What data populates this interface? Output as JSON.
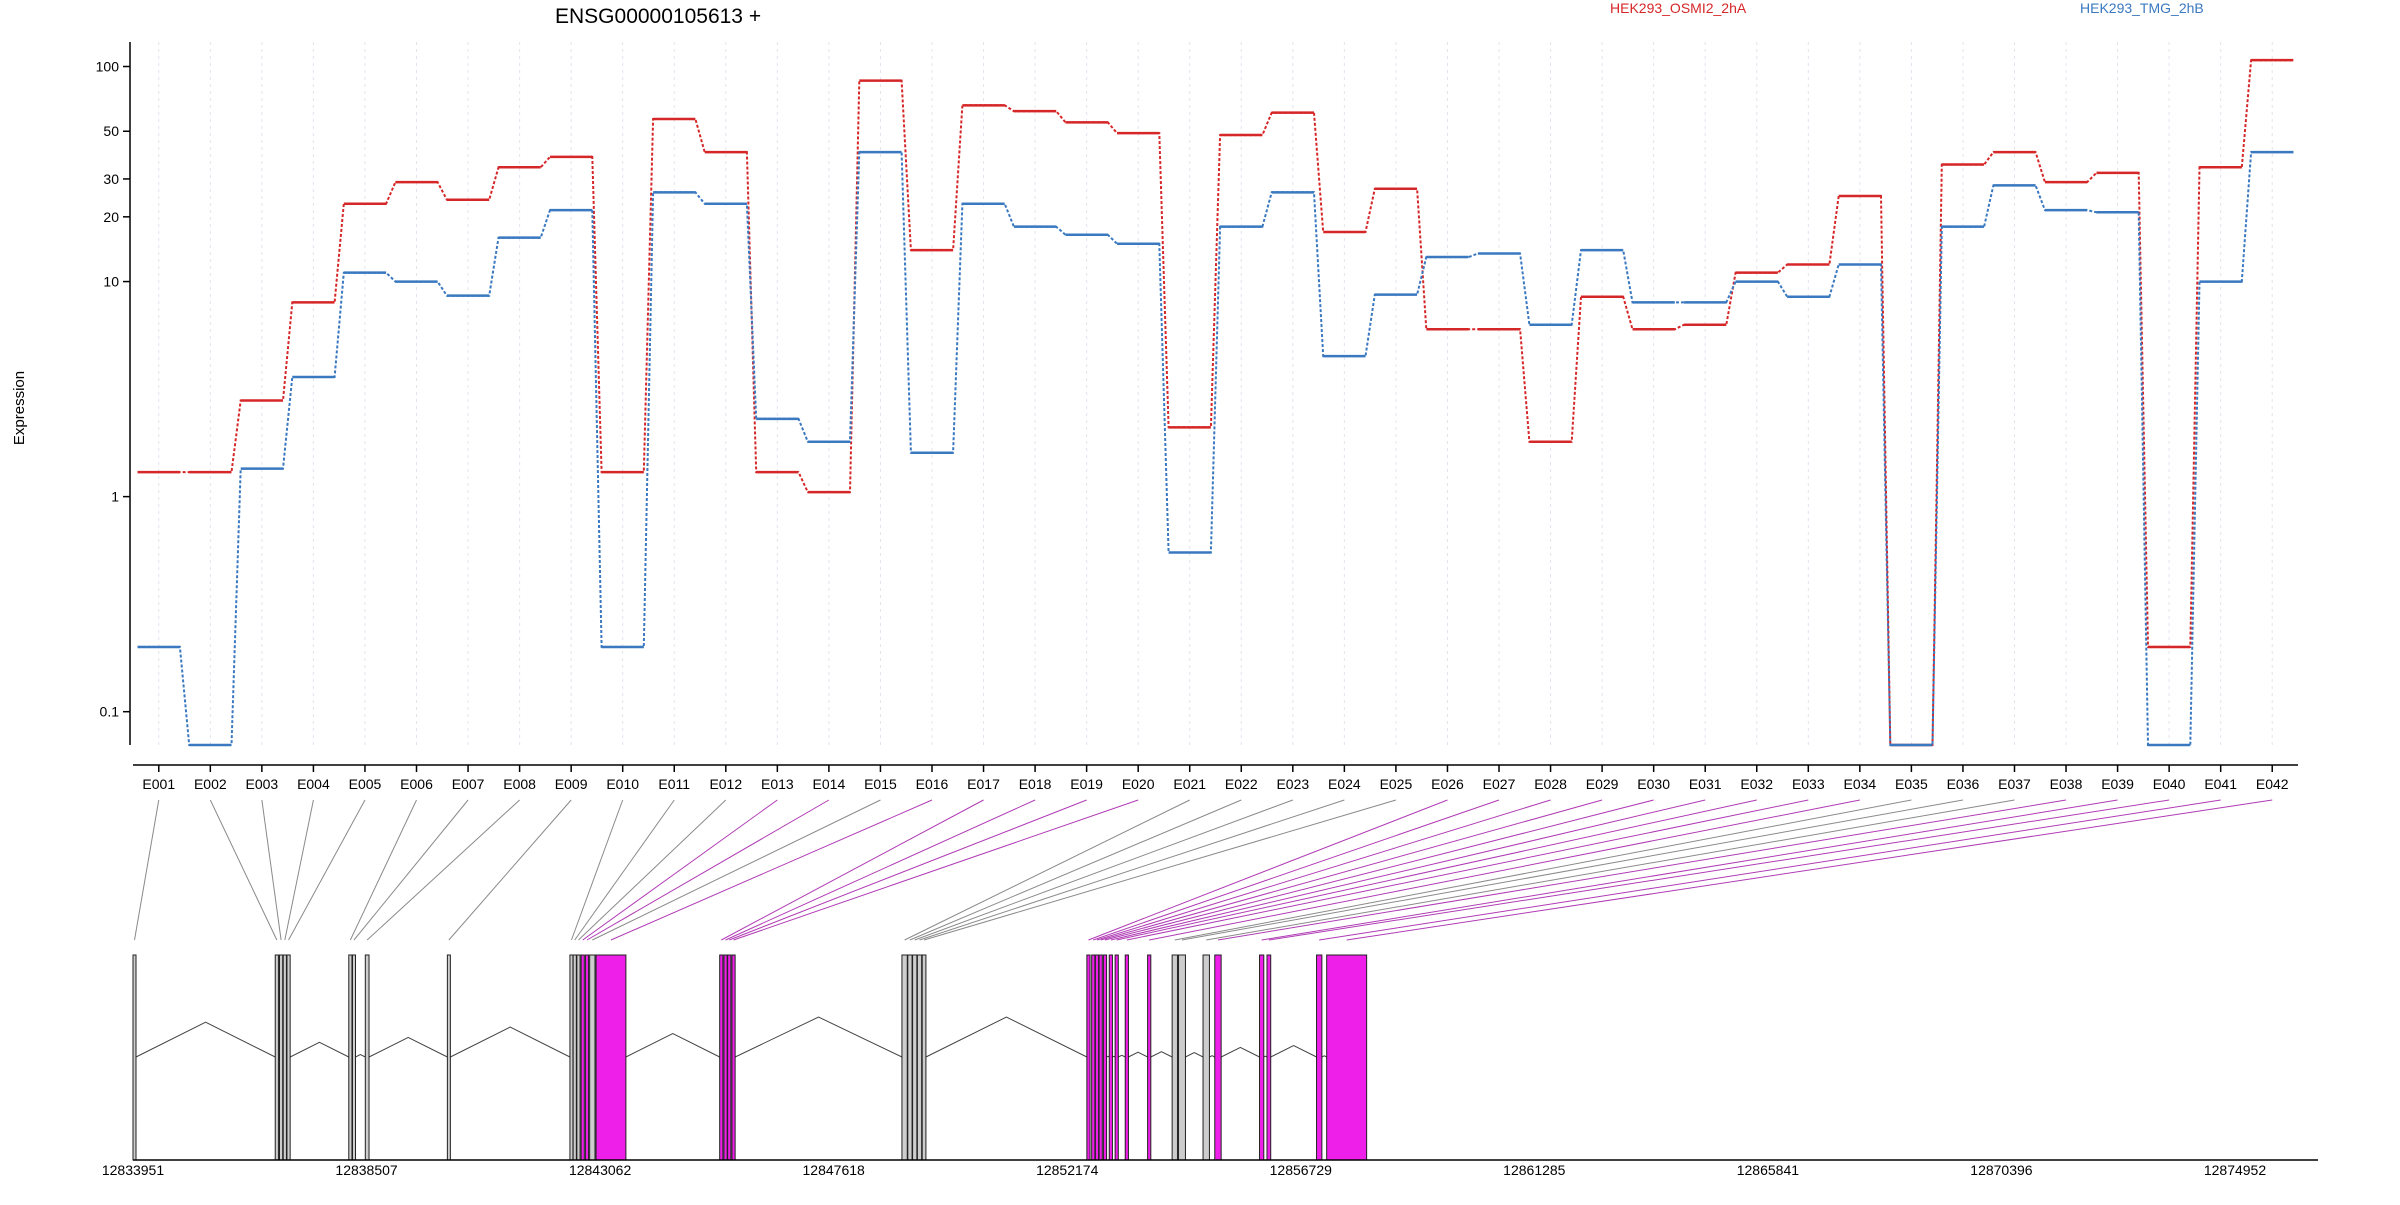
{
  "chart_data": {
    "type": "line",
    "title": "ENSG00000105613 +",
    "ylabel": "Expression",
    "y_scale": "log",
    "ylim": [
      0.07,
      130
    ],
    "y_ticks": [
      {
        "label": "0.1",
        "value": 0.1
      },
      {
        "label": "1",
        "value": 1
      },
      {
        "label": "10",
        "value": 10
      },
      {
        "label": "20",
        "value": 20
      },
      {
        "label": "30",
        "value": 30
      },
      {
        "label": "50",
        "value": 50
      },
      {
        "label": "100",
        "value": 100
      }
    ],
    "categories": [
      "E001",
      "E002",
      "E003",
      "E004",
      "E005",
      "E006",
      "E007",
      "E008",
      "E009",
      "E010",
      "E011",
      "E012",
      "E013",
      "E014",
      "E015",
      "E016",
      "E017",
      "E018",
      "E019",
      "E020",
      "E021",
      "E022",
      "E023",
      "E024",
      "E025",
      "E026",
      "E027",
      "E028",
      "E029",
      "E030",
      "E031",
      "E032",
      "E033",
      "E034",
      "E035",
      "E036",
      "E037",
      "E038",
      "E039",
      "E040",
      "E041",
      "E042"
    ],
    "series": [
      {
        "name": "HEK293_OSMI2_2hA",
        "color": "#d62728",
        "values": [
          1.3,
          1.3,
          2.8,
          8.0,
          23.0,
          29.0,
          24.0,
          34.0,
          38.0,
          1.3,
          57.0,
          40.0,
          1.3,
          1.05,
          86.0,
          14.0,
          66.0,
          62.0,
          55.0,
          49.0,
          2.1,
          48.0,
          61.0,
          17.0,
          27.0,
          6.0,
          6.0,
          1.8,
          8.5,
          6.0,
          6.3,
          11.0,
          12.0,
          25.0,
          0.07,
          35.0,
          40.0,
          29.0,
          32.0,
          0.2,
          34.0,
          107.0
        ]
      },
      {
        "name": "HEK293_TMG_2hB",
        "color": "#3a78c0",
        "values": [
          0.2,
          0.07,
          1.35,
          3.6,
          11.0,
          10.0,
          8.6,
          16.0,
          21.5,
          0.2,
          26.0,
          23.0,
          2.3,
          1.8,
          40.0,
          1.6,
          23.0,
          18.0,
          16.5,
          15.0,
          0.55,
          18.0,
          26.0,
          4.5,
          8.7,
          13.0,
          13.5,
          6.3,
          14.0,
          8.0,
          8.0,
          10.0,
          8.5,
          12.0,
          0.07,
          18.0,
          28.0,
          21.5,
          21.0,
          0.07,
          10.0,
          40.0
        ]
      }
    ],
    "exons": [
      {
        "id": "E001",
        "start": 12833951,
        "end": 12833990,
        "type": "gray"
      },
      {
        "id": "E002",
        "start": 12836620,
        "end": 12836680,
        "type": "gray"
      },
      {
        "id": "E003",
        "start": 12836700,
        "end": 12836760,
        "type": "gray"
      },
      {
        "id": "E004",
        "start": 12836770,
        "end": 12836830,
        "type": "gray"
      },
      {
        "id": "E005",
        "start": 12836840,
        "end": 12836900,
        "type": "gray"
      },
      {
        "id": "E006",
        "start": 12838000,
        "end": 12838060,
        "type": "gray"
      },
      {
        "id": "E007",
        "start": 12838070,
        "end": 12838110,
        "type": "gray"
      },
      {
        "id": "E008",
        "start": 12838310,
        "end": 12838380,
        "type": "gray"
      },
      {
        "id": "E009",
        "start": 12839850,
        "end": 12839900,
        "type": "gray"
      },
      {
        "id": "E010",
        "start": 12842150,
        "end": 12842200,
        "type": "gray"
      },
      {
        "id": "E011",
        "start": 12842210,
        "end": 12842270,
        "type": "gray"
      },
      {
        "id": "E012",
        "start": 12842280,
        "end": 12842340,
        "type": "gray"
      },
      {
        "id": "E013",
        "start": 12842360,
        "end": 12842420,
        "type": "magenta"
      },
      {
        "id": "E014",
        "start": 12842440,
        "end": 12842500,
        "type": "magenta"
      },
      {
        "id": "E015",
        "start": 12842520,
        "end": 12842620,
        "type": "gray"
      },
      {
        "id": "E016",
        "start": 12842640,
        "end": 12843200,
        "type": "magenta"
      },
      {
        "id": "E017",
        "start": 12844960,
        "end": 12845020,
        "type": "magenta"
      },
      {
        "id": "E018",
        "start": 12845040,
        "end": 12845100,
        "type": "magenta"
      },
      {
        "id": "E019",
        "start": 12845110,
        "end": 12845170,
        "type": "magenta"
      },
      {
        "id": "E020",
        "start": 12845190,
        "end": 12845250,
        "type": "magenta"
      },
      {
        "id": "E021",
        "start": 12848380,
        "end": 12848480,
        "type": "gray"
      },
      {
        "id": "E022",
        "start": 12848490,
        "end": 12848570,
        "type": "gray"
      },
      {
        "id": "E023",
        "start": 12848580,
        "end": 12848660,
        "type": "gray"
      },
      {
        "id": "E024",
        "start": 12848670,
        "end": 12848750,
        "type": "gray"
      },
      {
        "id": "E025",
        "start": 12848760,
        "end": 12848830,
        "type": "gray"
      },
      {
        "id": "E026",
        "start": 12851850,
        "end": 12851910,
        "type": "magenta"
      },
      {
        "id": "E027",
        "start": 12851940,
        "end": 12852000,
        "type": "magenta"
      },
      {
        "id": "E028",
        "start": 12852010,
        "end": 12852070,
        "type": "magenta"
      },
      {
        "id": "E029",
        "start": 12852080,
        "end": 12852140,
        "type": "magenta"
      },
      {
        "id": "E030",
        "start": 12852160,
        "end": 12852220,
        "type": "magenta"
      },
      {
        "id": "E031",
        "start": 12852270,
        "end": 12852330,
        "type": "magenta"
      },
      {
        "id": "E032",
        "start": 12852380,
        "end": 12852440,
        "type": "magenta"
      },
      {
        "id": "E033",
        "start": 12852570,
        "end": 12852630,
        "type": "magenta"
      },
      {
        "id": "E034",
        "start": 12852990,
        "end": 12853050,
        "type": "magenta"
      },
      {
        "id": "E035",
        "start": 12853450,
        "end": 12853550,
        "type": "gray"
      },
      {
        "id": "E036",
        "start": 12853570,
        "end": 12853700,
        "type": "gray"
      },
      {
        "id": "E037",
        "start": 12854030,
        "end": 12854150,
        "type": "gray"
      },
      {
        "id": "E038",
        "start": 12854250,
        "end": 12854370,
        "type": "magenta"
      },
      {
        "id": "E039",
        "start": 12855090,
        "end": 12855170,
        "type": "magenta"
      },
      {
        "id": "E040",
        "start": 12855230,
        "end": 12855300,
        "type": "magenta"
      },
      {
        "id": "E041",
        "start": 12856160,
        "end": 12856260,
        "type": "magenta"
      },
      {
        "id": "E042",
        "start": 12856350,
        "end": 12857100,
        "type": "magenta"
      }
    ],
    "genomic_ticks": [
      "12833951",
      "12838507",
      "12843062",
      "12847618",
      "12852174",
      "12856729",
      "12861285",
      "12865841",
      "12870396",
      "12874952"
    ],
    "grid": true
  }
}
